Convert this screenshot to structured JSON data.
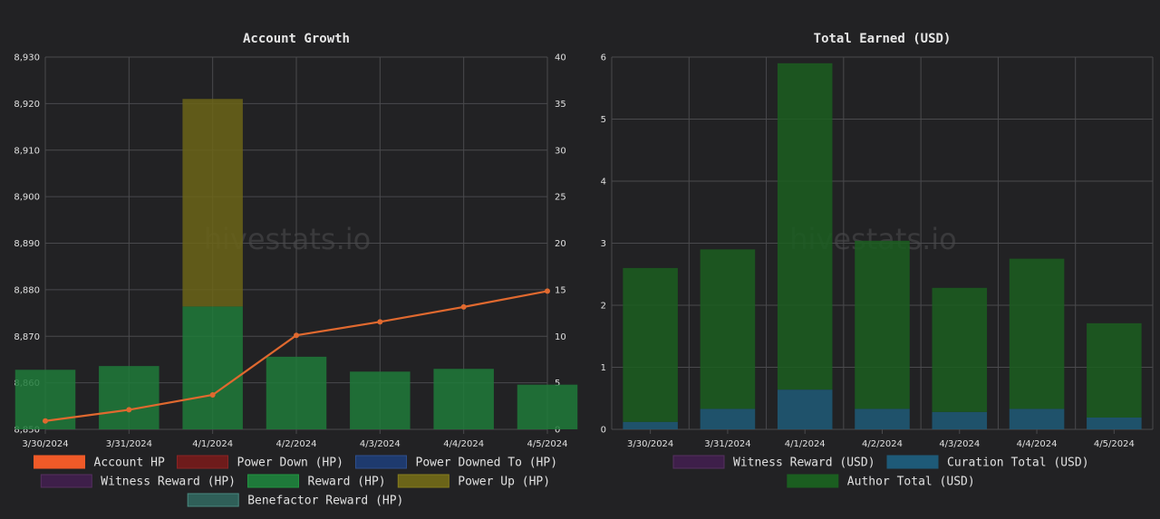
{
  "watermark": "hivestats.io",
  "chart_data": [
    {
      "type": "bar",
      "title": "Account Growth",
      "categories": [
        "3/30/2024",
        "3/31/2024",
        "4/1/2024",
        "4/2/2024",
        "4/3/2024",
        "4/4/2024",
        "4/5/2024"
      ],
      "y_left": {
        "ticks": [
          "8,850",
          "8,860",
          "8,870",
          "8,880",
          "8,890",
          "8,900",
          "8,910",
          "8,920",
          "8,930"
        ],
        "ylim": [
          8850,
          8930
        ]
      },
      "y_right": {
        "ticks": [
          "0",
          "5",
          "10",
          "15",
          "20",
          "25",
          "30",
          "35",
          "40"
        ],
        "ylim": [
          0,
          40
        ]
      },
      "grid": true,
      "legend_position": "bottom",
      "legend": [
        {
          "name": "Account HP",
          "color": "#f05a28",
          "border": "#f05a28"
        },
        {
          "name": "Power Down (HP)",
          "color": "#6e1b1b",
          "border": "#8a2424"
        },
        {
          "name": "Power Downed To (HP)",
          "color": "#1e3a6e",
          "border": "#2e4f8c"
        },
        {
          "name": "Witness Reward (HP)",
          "color": "#3e1f4a",
          "border": "#55305f"
        },
        {
          "name": "Reward (HP)",
          "color": "#1e7a3a",
          "border": "#229440"
        },
        {
          "name": "Power Up (HP)",
          "color": "#6b6418",
          "border": "#857c1e"
        },
        {
          "name": "Benefactor Reward (HP)",
          "color": "#2f5f58",
          "border": "#4a8a80"
        }
      ],
      "series": [
        {
          "name": "Account HP",
          "type": "line",
          "axis": "left",
          "color": "#e0692f",
          "values": [
            8851.8,
            8854.2,
            8857.4,
            8870.2,
            8873.1,
            8876.3,
            8879.7
          ]
        },
        {
          "name": "Reward (HP)",
          "type": "bar",
          "axis": "right",
          "stack": 0,
          "color": "#1e7a3a",
          "values": [
            6.4,
            6.8,
            13.2,
            7.8,
            6.2,
            6.5,
            4.8
          ]
        },
        {
          "name": "Power Up (HP)",
          "type": "bar",
          "axis": "right",
          "stack": 1,
          "color": "#6b6418",
          "values": [
            0,
            0,
            22.3,
            0,
            0,
            0,
            0
          ]
        }
      ]
    },
    {
      "type": "bar",
      "title": "Total Earned (USD)",
      "categories": [
        "3/30/2024",
        "3/31/2024",
        "4/1/2024",
        "4/2/2024",
        "4/3/2024",
        "4/4/2024",
        "4/5/2024"
      ],
      "y_left": {
        "ticks": [
          "0",
          "1",
          "2",
          "3",
          "4",
          "5",
          "6"
        ],
        "ylim": [
          0,
          6
        ]
      },
      "grid": true,
      "legend_position": "bottom",
      "legend": [
        {
          "name": "Witness Reward (USD)",
          "color": "#3e1f4a",
          "border": "#55305f"
        },
        {
          "name": "Curation Total (USD)",
          "color": "#1e5a78",
          "border": "#1e5a78"
        },
        {
          "name": "Author Total (USD)",
          "color": "#1b5e20",
          "border": "#1b5e20"
        }
      ],
      "series": [
        {
          "name": "Curation Total (USD)",
          "type": "bar",
          "stack": 0,
          "color": "#1e5a78",
          "values": [
            0.12,
            0.33,
            0.64,
            0.33,
            0.28,
            0.33,
            0.19
          ]
        },
        {
          "name": "Author Total (USD)",
          "type": "bar",
          "stack": 1,
          "color": "#1b5e20",
          "values": [
            2.48,
            2.57,
            5.26,
            2.71,
            2.0,
            2.42,
            1.52
          ]
        }
      ]
    }
  ]
}
